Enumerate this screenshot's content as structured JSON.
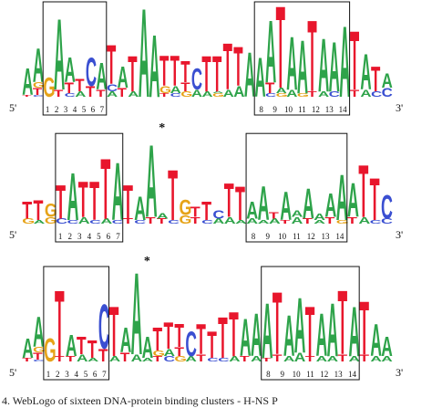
{
  "colors": {
    "A": "#2ea34a",
    "C": "#3a4fd1",
    "G": "#e6a318",
    "T": "#e8162c"
  },
  "figure": {
    "five_prime": "5'",
    "three_prime": "3'",
    "star": "*",
    "box_positions": [
      "1",
      "2",
      "3",
      "4",
      "5",
      "6",
      "7",
      "8",
      "9",
      "10",
      "11",
      "12",
      "13",
      "14"
    ],
    "caption": "4. WebLogo of sixteen DNA-protein binding clusters - H-NS P"
  },
  "chart_data": {
    "type": "sequence-logo",
    "panels": [
      {
        "columns": [
          [
            [
              "T",
              2
            ],
            [
              "A",
              30
            ]
          ],
          [
            [
              "C",
              2
            ],
            [
              "T",
              8
            ],
            [
              "G",
              6
            ],
            [
              "A",
              38
            ]
          ],
          [
            [
              "G",
              22
            ]
          ],
          [
            [
              "T",
              8
            ],
            [
              "A",
              80
            ]
          ],
          [
            [
              "C",
              4
            ],
            [
              "T",
              12
            ],
            [
              "A",
              28
            ]
          ],
          [
            [
              "A",
              6
            ],
            [
              "T",
              14
            ]
          ],
          [
            [
              "T",
              12
            ],
            [
              "C",
              32
            ]
          ],
          [
            [
              "T",
              8
            ],
            [
              "A",
              30
            ]
          ],
          [
            [
              "A",
              6
            ],
            [
              "C",
              8
            ],
            [
              "T",
              44
            ]
          ],
          [
            [
              "T",
              10
            ],
            [
              "A",
              24
            ]
          ],
          [
            [
              "A",
              6
            ],
            [
              "T",
              40
            ]
          ],
          [
            [
              "A",
              100
            ]
          ],
          [
            [
              "A",
              70
            ]
          ],
          [
            [
              "T",
              4
            ],
            [
              "G",
              8
            ],
            [
              "T",
              34
            ]
          ],
          [
            [
              "C",
              4
            ],
            [
              "A",
              8
            ],
            [
              "T",
              34
            ]
          ],
          [
            [
              "G",
              6
            ],
            [
              "T",
              10
            ],
            [
              "T",
              24
            ]
          ],
          [
            [
              "A",
              8
            ],
            [
              "C",
              24
            ]
          ],
          [
            [
              "A",
              6
            ],
            [
              "T",
              40
            ]
          ],
          [
            [
              "G",
              4
            ],
            [
              "A",
              2
            ],
            [
              "T",
              40
            ]
          ],
          [
            [
              "A",
              8
            ],
            [
              "T",
              52
            ]
          ],
          [
            [
              "A",
              12
            ],
            [
              "T",
              44
            ]
          ],
          [
            [
              "A",
              50
            ]
          ],
          [
            [
              "A",
              44
            ]
          ],
          [
            [
              "C",
              4
            ],
            [
              "T",
              12
            ],
            [
              "A",
              70
            ]
          ],
          [
            [
              "G",
              4
            ],
            [
              "A",
              6
            ],
            [
              "T",
              92
            ]
          ],
          [
            [
              "A",
              8
            ],
            [
              "A",
              60
            ]
          ],
          [
            [
              "G",
              4
            ],
            [
              "A",
              60
            ]
          ],
          [
            [
              "T",
              6
            ],
            [
              "T",
              80
            ]
          ],
          [
            [
              "A",
              6
            ],
            [
              "A",
              60
            ]
          ],
          [
            [
              "C",
              6
            ],
            [
              "A",
              56
            ]
          ],
          [
            [
              "A",
              80
            ]
          ],
          [
            [
              "T",
              8
            ],
            [
              "T",
              66
            ]
          ],
          [
            [
              "A",
              8
            ],
            [
              "A",
              40
            ]
          ],
          [
            [
              "C",
              6
            ],
            [
              "T",
              28
            ]
          ],
          [
            [
              "C",
              10
            ],
            [
              "A",
              16
            ]
          ]
        ]
      },
      {
        "columns": [
          [
            [
              "G",
              6
            ],
            [
              "T",
              20
            ]
          ],
          [
            [
              "A",
              4
            ],
            [
              "T",
              24
            ]
          ],
          [
            [
              "G",
              8
            ],
            [
              "G",
              16
            ]
          ],
          [
            [
              "C",
              6
            ],
            [
              "T",
              40
            ]
          ],
          [
            [
              "C",
              4
            ],
            [
              "A",
              56
            ]
          ],
          [
            [
              "A",
              8
            ],
            [
              "T",
              42
            ]
          ],
          [
            [
              "C",
              4
            ],
            [
              "T",
              46
            ]
          ],
          [
            [
              "A",
              6
            ],
            [
              "T",
              72
            ]
          ],
          [
            [
              "C",
              4
            ],
            [
              "A",
              68
            ]
          ],
          [
            [
              "T",
              6
            ],
            [
              "T",
              40
            ]
          ],
          [
            [
              "C",
              4
            ],
            [
              "A",
              28
            ]
          ],
          [
            [
              "T",
              8
            ],
            [
              "A",
              86
            ]
          ],
          [
            [
              "T",
              6
            ],
            [
              "A",
              6
            ]
          ],
          [
            [
              "C",
              4
            ],
            [
              "T",
              60
            ]
          ],
          [
            [
              "G",
              10
            ],
            [
              "G",
              18
            ]
          ],
          [
            [
              "T",
              8
            ],
            [
              "T",
              12
            ]
          ],
          [
            [
              "C",
              4
            ],
            [
              "T",
              22
            ]
          ],
          [
            [
              "A",
              6
            ],
            [
              "C",
              10
            ]
          ],
          [
            [
              "A",
              8
            ],
            [
              "T",
              40
            ]
          ],
          [
            [
              "A",
              4
            ],
            [
              "T",
              40
            ]
          ],
          [
            [
              "A",
              6
            ],
            [
              "A",
              20
            ]
          ],
          [
            [
              "A",
              4
            ],
            [
              "A",
              40
            ]
          ],
          [
            [
              "A",
              6
            ],
            [
              "T",
              8
            ]
          ],
          [
            [
              "T",
              4
            ],
            [
              "A",
              34
            ]
          ],
          [
            [
              "A",
              8
            ],
            [
              "A",
              8
            ]
          ],
          [
            [
              "T",
              6
            ],
            [
              "A",
              36
            ]
          ],
          [
            [
              "A",
              4
            ],
            [
              "A",
              8
            ]
          ],
          [
            [
              "T",
              8
            ],
            [
              "A",
              28
            ]
          ],
          [
            [
              "G",
              4
            ],
            [
              "A",
              54
            ]
          ],
          [
            [
              "T",
              8
            ],
            [
              "A",
              40
            ]
          ],
          [
            [
              "A",
              8
            ],
            [
              "T",
              62
            ]
          ],
          [
            [
              "C",
              4
            ],
            [
              "T",
              50
            ]
          ],
          [
            [
              "C",
              6
            ],
            [
              "C",
              28
            ]
          ]
        ]
      },
      {
        "columns": [
          [
            [
              "T",
              4
            ],
            [
              "A",
              22
            ]
          ],
          [
            [
              "C",
              2
            ],
            [
              "T",
              8
            ],
            [
              "G",
              6
            ],
            [
              "A",
              34
            ]
          ],
          [
            [
              "G",
              26
            ]
          ],
          [
            [
              "T",
              6
            ],
            [
              "T",
              74
            ]
          ],
          [
            [
              "T",
              6
            ],
            [
              "A",
              24
            ]
          ],
          [
            [
              "A",
              8
            ],
            [
              "T",
              20
            ]
          ],
          [
            [
              "A",
              4
            ],
            [
              "T",
              20
            ]
          ],
          [
            [
              "T",
              14
            ],
            [
              "C",
              50
            ]
          ],
          [
            [
              "A",
              6
            ],
            [
              "T",
              56
            ]
          ],
          [
            [
              "T",
              10
            ],
            [
              "A",
              28
            ]
          ],
          [
            [
              "A",
              8
            ],
            [
              "A",
              92
            ]
          ],
          [
            [
              "A",
              4
            ],
            [
              "A",
              24
            ]
          ],
          [
            [
              "T",
              6
            ],
            [
              "G",
              6
            ],
            [
              "T",
              26
            ]
          ],
          [
            [
              "C",
              6
            ],
            [
              "A",
              8
            ],
            [
              "T",
              30
            ]
          ],
          [
            [
              "G",
              6
            ],
            [
              "T",
              10
            ],
            [
              "T",
              26
            ]
          ],
          [
            [
              "A",
              6
            ],
            [
              "C",
              28
            ]
          ],
          [
            [
              "T",
              8
            ],
            [
              "T",
              34
            ]
          ],
          [
            [
              "C",
              4
            ],
            [
              "T",
              30
            ]
          ],
          [
            [
              "C",
              4
            ],
            [
              "T",
              46
            ]
          ],
          [
            [
              "A",
              6
            ],
            [
              "T",
              50
            ]
          ],
          [
            [
              "T",
              6
            ],
            [
              "A",
              42
            ]
          ],
          [
            [
              "A",
              6
            ],
            [
              "A",
              48
            ]
          ],
          [
            [
              "T",
              4
            ],
            [
              "A",
              62
            ]
          ],
          [
            [
              "T",
              8
            ],
            [
              "T",
              70
            ]
          ],
          [
            [
              "A",
              6
            ],
            [
              "A",
              46
            ]
          ],
          [
            [
              "A",
              10
            ],
            [
              "A",
              62
            ]
          ],
          [
            [
              "T",
              6
            ],
            [
              "T",
              56
            ]
          ],
          [
            [
              "A",
              6
            ],
            [
              "A",
              48
            ]
          ],
          [
            [
              "A",
              6
            ],
            [
              "A",
              60
            ]
          ],
          [
            [
              "T",
              8
            ],
            [
              "T",
              72
            ]
          ],
          [
            [
              "A",
              6
            ],
            [
              "A",
              56
            ]
          ],
          [
            [
              "T",
              8
            ],
            [
              "T",
              60
            ]
          ],
          [
            [
              "A",
              6
            ],
            [
              "A",
              36
            ]
          ],
          [
            [
              "A",
              6
            ],
            [
              "A",
              22
            ]
          ]
        ]
      }
    ]
  }
}
